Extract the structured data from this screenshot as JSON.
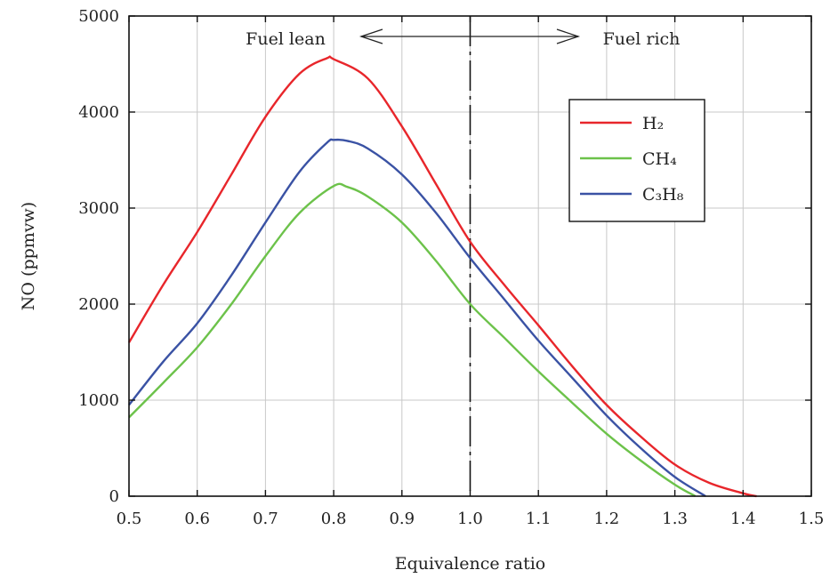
{
  "chart_data": {
    "type": "line",
    "title": "",
    "xlabel": "Equivalence ratio",
    "ylabel": "NO (ppmvw)",
    "xlim": [
      0.5,
      1.5
    ],
    "ylim": [
      0,
      5000
    ],
    "xticks": [
      0.5,
      0.6,
      0.7,
      0.8,
      0.9,
      1.0,
      1.1,
      1.2,
      1.3,
      1.4,
      1.5
    ],
    "xtick_labels": [
      "0.5",
      "0.6",
      "0.7",
      "0.8",
      "0.9",
      "1.0",
      "1.1",
      "1.2",
      "1.3",
      "1.4",
      "1.5"
    ],
    "yticks": [
      0,
      1000,
      2000,
      3000,
      4000,
      5000
    ],
    "ytick_labels": [
      "0",
      "1000",
      "2000",
      "3000",
      "4000",
      "5000"
    ],
    "grid": true,
    "legend": "top-right",
    "reference_line": {
      "x": 1.0,
      "style": "dash-dot"
    },
    "annotations": {
      "lean": "Fuel lean",
      "rich": "Fuel rich"
    },
    "series": [
      {
        "name": "H₂",
        "color": "#e8262b",
        "points": [
          [
            0.5,
            1600
          ],
          [
            0.55,
            2200
          ],
          [
            0.6,
            2750
          ],
          [
            0.65,
            3350
          ],
          [
            0.7,
            3950
          ],
          [
            0.75,
            4400
          ],
          [
            0.79,
            4560
          ],
          [
            0.8,
            4550
          ],
          [
            0.85,
            4350
          ],
          [
            0.9,
            3850
          ],
          [
            0.95,
            3250
          ],
          [
            1.0,
            2650
          ],
          [
            1.05,
            2200
          ],
          [
            1.1,
            1780
          ],
          [
            1.15,
            1350
          ],
          [
            1.2,
            950
          ],
          [
            1.25,
            620
          ],
          [
            1.3,
            330
          ],
          [
            1.35,
            140
          ],
          [
            1.4,
            30
          ],
          [
            1.42,
            0
          ]
        ]
      },
      {
        "name": "CH₄",
        "color": "#6cc24a",
        "points": [
          [
            0.5,
            820
          ],
          [
            0.55,
            1180
          ],
          [
            0.6,
            1550
          ],
          [
            0.65,
            2000
          ],
          [
            0.7,
            2500
          ],
          [
            0.75,
            2950
          ],
          [
            0.8,
            3230
          ],
          [
            0.82,
            3220
          ],
          [
            0.85,
            3120
          ],
          [
            0.9,
            2850
          ],
          [
            0.95,
            2450
          ],
          [
            1.0,
            2000
          ],
          [
            1.05,
            1650
          ],
          [
            1.1,
            1300
          ],
          [
            1.15,
            970
          ],
          [
            1.2,
            650
          ],
          [
            1.25,
            370
          ],
          [
            1.3,
            120
          ],
          [
            1.33,
            0
          ]
        ]
      },
      {
        "name": "C₃H₈",
        "color": "#3a52a4",
        "points": [
          [
            0.5,
            950
          ],
          [
            0.55,
            1400
          ],
          [
            0.6,
            1800
          ],
          [
            0.65,
            2300
          ],
          [
            0.7,
            2850
          ],
          [
            0.75,
            3380
          ],
          [
            0.79,
            3680
          ],
          [
            0.8,
            3710
          ],
          [
            0.82,
            3700
          ],
          [
            0.85,
            3620
          ],
          [
            0.9,
            3350
          ],
          [
            0.95,
            2950
          ],
          [
            1.0,
            2480
          ],
          [
            1.05,
            2050
          ],
          [
            1.1,
            1620
          ],
          [
            1.15,
            1230
          ],
          [
            1.2,
            840
          ],
          [
            1.25,
            500
          ],
          [
            1.3,
            200
          ],
          [
            1.345,
            0
          ]
        ]
      }
    ]
  }
}
